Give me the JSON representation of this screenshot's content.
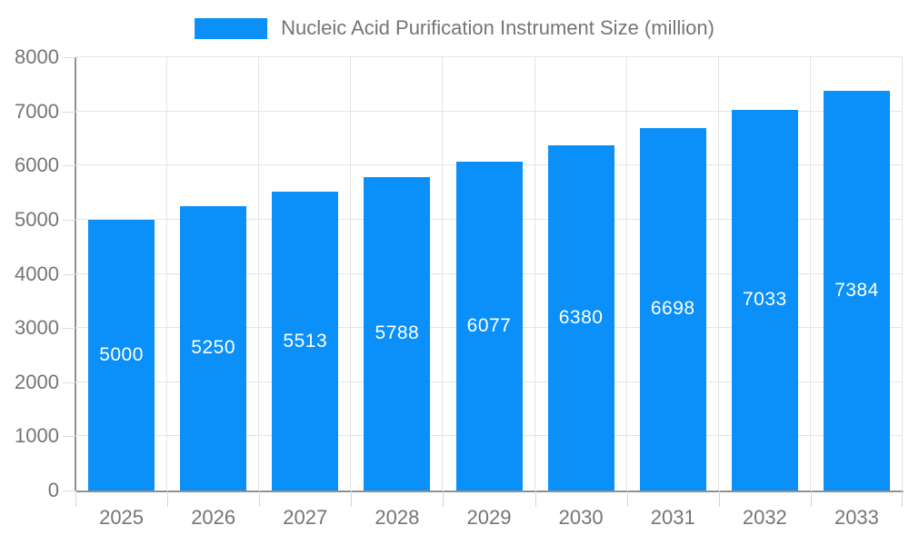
{
  "legend": {
    "label": "Nucleic Acid Purification Instrument Size (million)"
  },
  "colors": {
    "bar": "#0a90f8",
    "grid": "#e4e4e4",
    "axis": "#909090",
    "tick_text": "#757575",
    "value_label": "#ffffff"
  },
  "chart_data": {
    "type": "bar",
    "title": "Nucleic Acid Purification Instrument Size (million)",
    "categories": [
      "2025",
      "2026",
      "2027",
      "2028",
      "2029",
      "2030",
      "2031",
      "2032",
      "2033"
    ],
    "values": [
      5000,
      5250,
      5513,
      5788,
      6077,
      6380,
      6698,
      7033,
      7384
    ],
    "xlabel": "",
    "ylabel": "",
    "ylim": [
      0,
      8000
    ],
    "ytick_step": 1000,
    "yticks": [
      "0",
      "1000",
      "2000",
      "3000",
      "4000",
      "5000",
      "6000",
      "7000",
      "8000"
    ],
    "grid": true,
    "legend_position": "top",
    "value_labels": "inside-center"
  }
}
